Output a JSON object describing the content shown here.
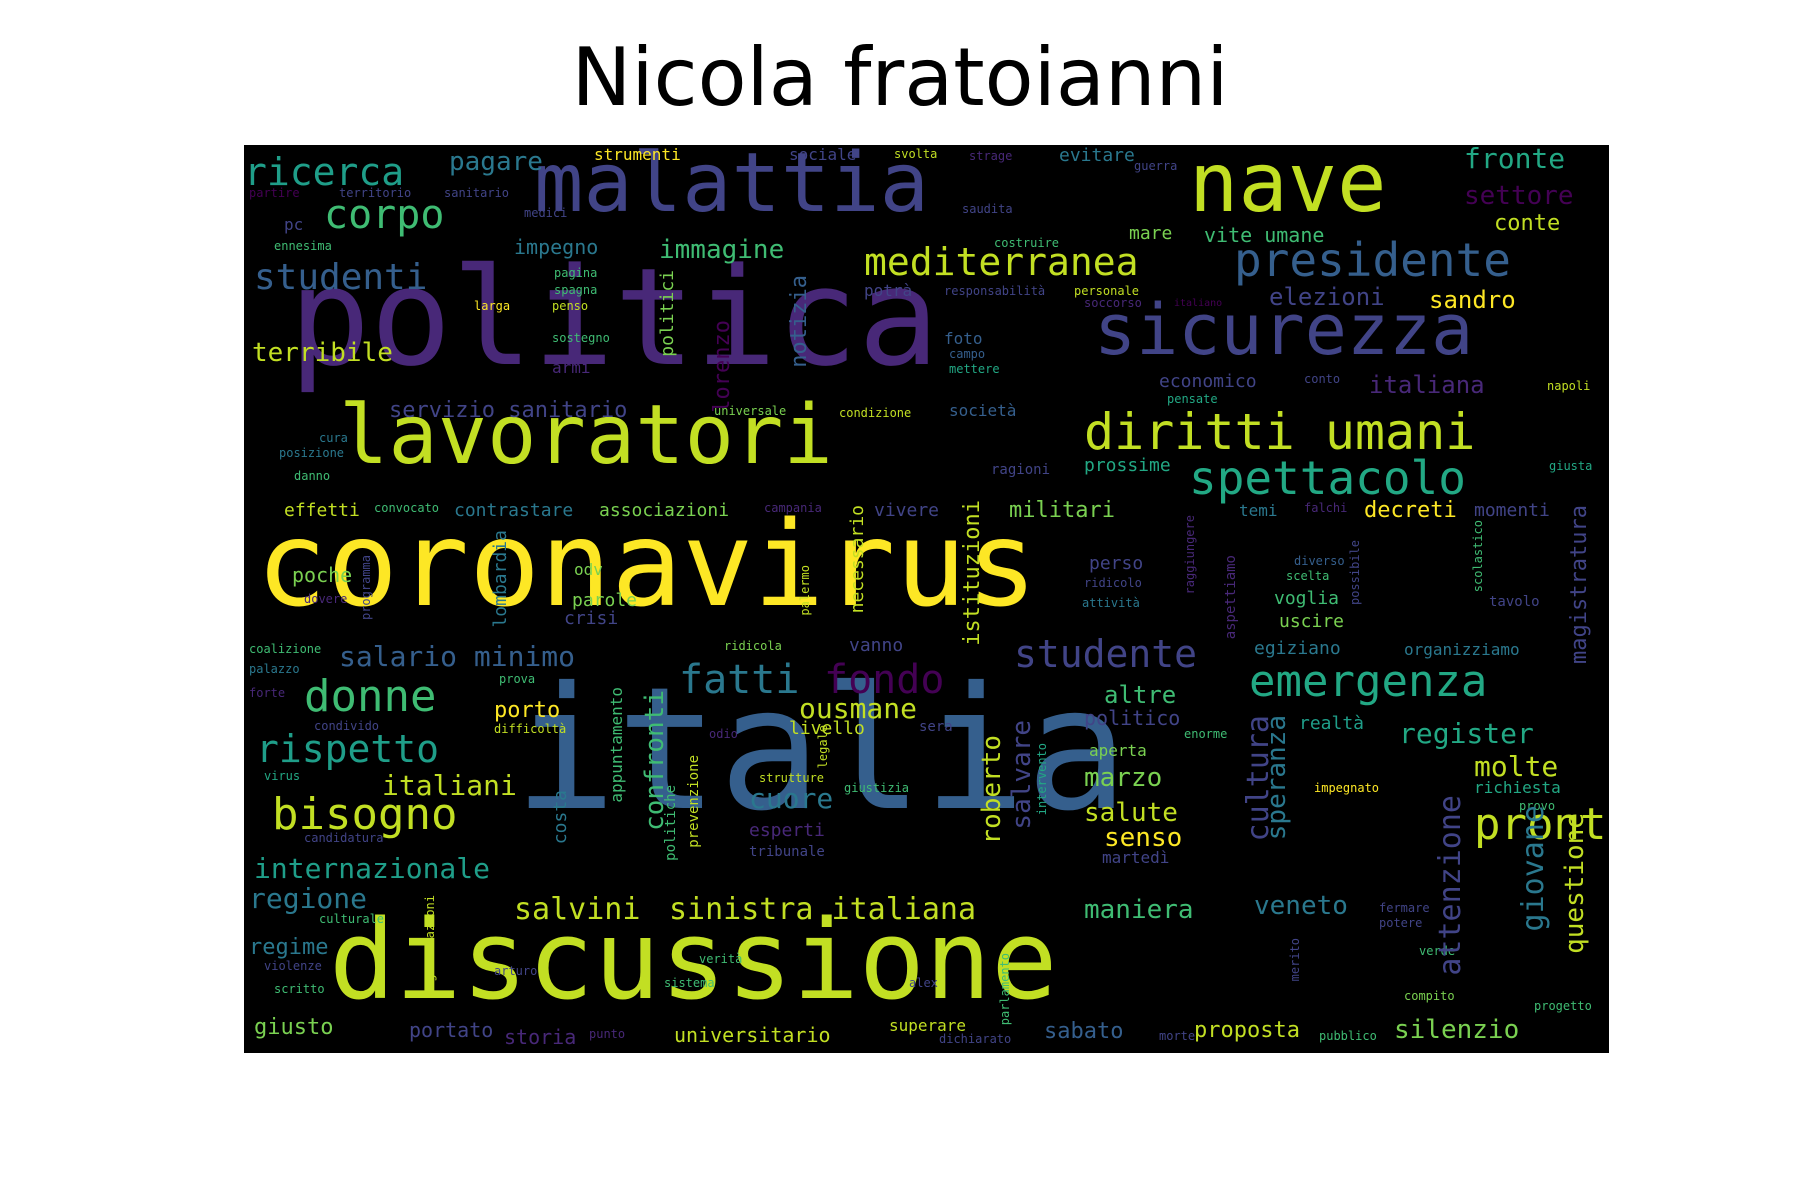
{
  "title": "Nicola fratoianni",
  "palette": {
    "yellow": "#fde725",
    "lime": "#c2df23",
    "green": "#7ad151",
    "teal_green": "#3fbc73",
    "teal": "#22a884",
    "cyan": "#1f9e89",
    "blue_teal": "#26828e",
    "steel": "#2a788e",
    "slate": "#355f8d",
    "indigo": "#414487",
    "purple": "#482878",
    "dark_purple": "#440154"
  },
  "words": [
    {
      "text": "coronavirus",
      "size": 118,
      "color": "yellow"
    },
    {
      "text": "italia",
      "size": 170,
      "color": "slate"
    },
    {
      "text": "politica",
      "size": 135,
      "color": "purple"
    },
    {
      "text": "discussione",
      "size": 110,
      "color": "lime"
    },
    {
      "text": "lavoratori",
      "size": 82,
      "color": "lime"
    },
    {
      "text": "malattia",
      "size": 82,
      "color": "indigo"
    },
    {
      "text": "nave",
      "size": 82,
      "color": "lime"
    },
    {
      "text": "sicurezza",
      "size": 70,
      "color": "indigo"
    },
    {
      "text": "diritti umani",
      "size": 50,
      "color": "lime"
    },
    {
      "text": "spettacolo",
      "size": 46,
      "color": "teal"
    },
    {
      "text": "presidente",
      "size": 46,
      "color": "slate"
    },
    {
      "text": "emergenza",
      "size": 44,
      "color": "teal"
    },
    {
      "text": "mediterranea",
      "size": 38,
      "color": "lime"
    },
    {
      "text": "corpo",
      "size": 40,
      "color": "teal_green"
    },
    {
      "text": "ricerca",
      "size": 38,
      "color": "cyan"
    },
    {
      "text": "studenti",
      "size": 36,
      "color": "slate"
    },
    {
      "text": "donne",
      "size": 44,
      "color": "teal_green"
    },
    {
      "text": "bisogno",
      "size": 44,
      "color": "lime"
    },
    {
      "text": "rispetto",
      "size": 38,
      "color": "cyan"
    },
    {
      "text": "studente",
      "size": 38,
      "color": "indigo"
    },
    {
      "text": "fatti",
      "size": 40,
      "color": "steel"
    },
    {
      "text": "fondo",
      "size": 40,
      "color": "dark_purple"
    },
    {
      "text": "salario minimo",
      "size": 28,
      "color": "slate"
    },
    {
      "text": "internazionale",
      "size": 28,
      "color": "cyan"
    },
    {
      "text": "regione",
      "size": 28,
      "color": "steel"
    },
    {
      "text": "italiani",
      "size": 28,
      "color": "lime"
    },
    {
      "text": "salvini",
      "size": 30,
      "color": "lime"
    },
    {
      "text": "sinistra italiana",
      "size": 30,
      "color": "lime"
    },
    {
      "text": "ousmane",
      "size": 28,
      "color": "lime"
    },
    {
      "text": "cuore",
      "size": 28,
      "color": "steel"
    },
    {
      "text": "pronto",
      "size": 44,
      "color": "lime",
      "vertical": true
    },
    {
      "text": "register",
      "size": 28,
      "color": "teal"
    },
    {
      "text": "molte",
      "size": 28,
      "color": "lime"
    },
    {
      "text": "settore",
      "size": 26,
      "color": "dark_purple"
    },
    {
      "text": "fronte",
      "size": 28,
      "color": "teal"
    },
    {
      "text": "conte",
      "size": 22,
      "color": "lime"
    },
    {
      "text": "pagare",
      "size": 26,
      "color": "steel"
    },
    {
      "text": "immagine",
      "size": 26,
      "color": "teal_green"
    },
    {
      "text": "impegno",
      "size": 20,
      "color": "steel"
    },
    {
      "text": "vite umane",
      "size": 20,
      "color": "teal_green"
    },
    {
      "text": "mare",
      "size": 18,
      "color": "green"
    },
    {
      "text": "elezioni",
      "size": 24,
      "color": "indigo"
    },
    {
      "text": "sandro",
      "size": 24,
      "color": "yellow"
    },
    {
      "text": "italiana",
      "size": 24,
      "color": "purple"
    },
    {
      "text": "servizio sanitario",
      "size": 22,
      "color": "indigo"
    },
    {
      "text": "terribile",
      "size": 26,
      "color": "lime",
      "vertical": true
    },
    {
      "text": "militari",
      "size": 22,
      "color": "green"
    },
    {
      "text": "decreti",
      "size": 22,
      "color": "yellow"
    },
    {
      "text": "momenti",
      "size": 18,
      "color": "indigo"
    },
    {
      "text": "prossime",
      "size": 18,
      "color": "teal"
    },
    {
      "text": "contrastare",
      "size": 18,
      "color": "steel"
    },
    {
      "text": "associazioni",
      "size": 18,
      "color": "green"
    },
    {
      "text": "vivere",
      "size": 18,
      "color": "indigo"
    },
    {
      "text": "effetti",
      "size": 18,
      "color": "lime"
    },
    {
      "text": "poche",
      "size": 20,
      "color": "green"
    },
    {
      "text": "altre",
      "size": 24,
      "color": "teal_green"
    },
    {
      "text": "politico",
      "size": 20,
      "color": "indigo"
    },
    {
      "text": "realtà",
      "size": 18,
      "color": "cyan"
    },
    {
      "text": "marzo",
      "size": 26,
      "color": "green"
    },
    {
      "text": "salute",
      "size": 26,
      "color": "lime"
    },
    {
      "text": "senso",
      "size": 26,
      "color": "yellow"
    },
    {
      "text": "maniera",
      "size": 26,
      "color": "teal_green"
    },
    {
      "text": "veneto",
      "size": 26,
      "color": "steel"
    },
    {
      "text": "porto",
      "size": 22,
      "color": "yellow"
    },
    {
      "text": "livello",
      "size": 18,
      "color": "lime"
    },
    {
      "text": "aperta",
      "size": 16,
      "color": "green"
    },
    {
      "text": "regime",
      "size": 22,
      "color": "steel"
    },
    {
      "text": "giusto",
      "size": 22,
      "color": "green"
    },
    {
      "text": "universitario",
      "size": 20,
      "color": "lime"
    },
    {
      "text": "proposta",
      "size": 22,
      "color": "lime"
    },
    {
      "text": "silenzio",
      "size": 26,
      "color": "green"
    },
    {
      "text": "sabato",
      "size": 22,
      "color": "slate"
    },
    {
      "text": "storia",
      "size": 20,
      "color": "purple"
    },
    {
      "text": "portato",
      "size": 20,
      "color": "indigo"
    },
    {
      "text": "superare",
      "size": 16,
      "color": "lime"
    },
    {
      "text": "esperti",
      "size": 18,
      "color": "purple"
    },
    {
      "text": "tribunale",
      "size": 14,
      "color": "indigo"
    },
    {
      "text": "martedì",
      "size": 16,
      "color": "indigo"
    },
    {
      "text": "richiesta",
      "size": 16,
      "color": "teal"
    },
    {
      "text": "egiziano",
      "size": 18,
      "color": "steel"
    },
    {
      "text": "organizziamo",
      "size": 16,
      "color": "steel"
    },
    {
      "text": "uscire",
      "size": 18,
      "color": "green"
    },
    {
      "text": "voglia",
      "size": 18,
      "color": "teal_green"
    },
    {
      "text": "tavolo",
      "size": 14,
      "color": "indigo"
    },
    {
      "text": "temi",
      "size": 16,
      "color": "steel"
    },
    {
      "text": "perso",
      "size": 18,
      "color": "indigo"
    },
    {
      "text": "odv",
      "size": 16,
      "color": "green"
    },
    {
      "text": "parole",
      "size": 18,
      "color": "green"
    },
    {
      "text": "crisi",
      "size": 18,
      "color": "indigo"
    },
    {
      "text": "vanno",
      "size": 18,
      "color": "indigo"
    },
    {
      "text": "economico",
      "size": 18,
      "color": "indigo"
    },
    {
      "text": "società",
      "size": 16,
      "color": "slate"
    },
    {
      "text": "ragioni",
      "size": 14,
      "color": "indigo"
    },
    {
      "text": "condizione",
      "size": 12,
      "color": "lime"
    },
    {
      "text": "universale",
      "size": 12,
      "color": "green"
    },
    {
      "text": "pensate",
      "size": 12,
      "color": "teal"
    },
    {
      "text": "napoli",
      "size": 12,
      "color": "lime"
    },
    {
      "text": "conto",
      "size": 12,
      "color": "indigo"
    },
    {
      "text": "giusta",
      "size": 12,
      "color": "teal"
    },
    {
      "text": "foto",
      "size": 16,
      "color": "slate"
    },
    {
      "text": "campo",
      "size": 12,
      "color": "slate"
    },
    {
      "text": "mettere",
      "size": 12,
      "color": "teal"
    },
    {
      "text": "potrà",
      "size": 16,
      "color": "indigo"
    },
    {
      "text": "responsabilità",
      "size": 12,
      "color": "indigo"
    },
    {
      "text": "personale",
      "size": 12,
      "color": "lime"
    },
    {
      "text": "soccorso",
      "size": 12,
      "color": "purple"
    },
    {
      "text": "italiano",
      "size": 10,
      "color": "dark_purple"
    },
    {
      "text": "costruire",
      "size": 12,
      "color": "teal_green"
    },
    {
      "text": "saudita",
      "size": 12,
      "color": "indigo"
    },
    {
      "text": "guerra",
      "size": 12,
      "color": "indigo"
    },
    {
      "text": "evitare",
      "size": 18,
      "color": "steel"
    },
    {
      "text": "strage",
      "size": 12,
      "color": "purple"
    },
    {
      "text": "svolta",
      "size": 12,
      "color": "lime"
    },
    {
      "text": "sociale",
      "size": 16,
      "color": "indigo"
    },
    {
      "text": "strumenti",
      "size": 16,
      "color": "yellow"
    },
    {
      "text": "sanitario",
      "size": 12,
      "color": "indigo"
    },
    {
      "text": "territorio",
      "size": 12,
      "color": "indigo"
    },
    {
      "text": "partire",
      "size": 12,
      "color": "dark_purple"
    },
    {
      "text": "medici",
      "size": 12,
      "color": "indigo"
    },
    {
      "text": "pc",
      "size": 16,
      "color": "indigo"
    },
    {
      "text": "ennesima",
      "size": 12,
      "color": "teal_green"
    },
    {
      "text": "pagina",
      "size": 12,
      "color": "teal_green"
    },
    {
      "text": "spagna",
      "size": 12,
      "color": "teal_green"
    },
    {
      "text": "larga",
      "size": 12,
      "color": "yellow"
    },
    {
      "text": "penso",
      "size": 12,
      "color": "lime"
    },
    {
      "text": "sostegno",
      "size": 12,
      "color": "teal_green"
    },
    {
      "text": "armi",
      "size": 16,
      "color": "purple"
    },
    {
      "text": "cura",
      "size": 12,
      "color": "steel"
    },
    {
      "text": "posizione",
      "size": 12,
      "color": "steel"
    },
    {
      "text": "danno",
      "size": 12,
      "color": "teal_green"
    },
    {
      "text": "convocato",
      "size": 12,
      "color": "teal_green"
    },
    {
      "text": "campania",
      "size": 12,
      "color": "purple"
    },
    {
      "text": "falchi",
      "size": 12,
      "color": "purple"
    },
    {
      "text": "diverso",
      "size": 12,
      "color": "slate"
    },
    {
      "text": "scelta",
      "size": 12,
      "color": "teal_green"
    },
    {
      "text": "ridicolo",
      "size": 12,
      "color": "indigo"
    },
    {
      "text": "attività",
      "size": 12,
      "color": "steel"
    },
    {
      "text": "dovere",
      "size": 12,
      "color": "purple"
    },
    {
      "text": "coalizione",
      "size": 12,
      "color": "teal_green"
    },
    {
      "text": "palazzo",
      "size": 12,
      "color": "steel"
    },
    {
      "text": "prova",
      "size": 12,
      "color": "teal_green"
    },
    {
      "text": "ridicola",
      "size": 12,
      "color": "green"
    },
    {
      "text": "forte",
      "size": 12,
      "color": "purple"
    },
    {
      "text": "condivido",
      "size": 12,
      "color": "indigo"
    },
    {
      "text": "difficoltà",
      "size": 12,
      "color": "lime"
    },
    {
      "text": "odio",
      "size": 12,
      "color": "purple"
    },
    {
      "text": "sera",
      "size": 14,
      "color": "indigo"
    },
    {
      "text": "enorme",
      "size": 12,
      "color": "teal_green"
    },
    {
      "text": "virus",
      "size": 12,
      "color": "teal"
    },
    {
      "text": "strutture",
      "size": 12,
      "color": "lime"
    },
    {
      "text": "giustizia",
      "size": 12,
      "color": "teal_green"
    },
    {
      "text": "impegnato",
      "size": 12,
      "color": "yellow"
    },
    {
      "text": "provo",
      "size": 12,
      "color": "teal_green"
    },
    {
      "text": "candidatura",
      "size": 12,
      "color": "indigo"
    },
    {
      "text": "culturale",
      "size": 12,
      "color": "teal_green"
    },
    {
      "text": "fermare",
      "size": 12,
      "color": "indigo"
    },
    {
      "text": "potere",
      "size": 12,
      "color": "indigo"
    },
    {
      "text": "verde",
      "size": 12,
      "color": "teal_green"
    },
    {
      "text": "violenze",
      "size": 12,
      "color": "indigo"
    },
    {
      "text": "arturo",
      "size": 12,
      "color": "indigo"
    },
    {
      "text": "verità",
      "size": 12,
      "color": "teal_green"
    },
    {
      "text": "sistema",
      "size": 12,
      "color": "teal_green"
    },
    {
      "text": "alex",
      "size": 12,
      "color": "indigo"
    },
    {
      "text": "scritto",
      "size": 12,
      "color": "teal_green"
    },
    {
      "text": "compito",
      "size": 12,
      "color": "green"
    },
    {
      "text": "progetto",
      "size": 12,
      "color": "teal_green"
    },
    {
      "text": "punto",
      "size": 12,
      "color": "purple"
    },
    {
      "text": "dichiarato",
      "size": 12,
      "color": "indigo"
    },
    {
      "text": "morte",
      "size": 12,
      "color": "indigo"
    },
    {
      "text": "pubblico",
      "size": 12,
      "color": "teal_green"
    },
    {
      "text": "cultura",
      "size": 30,
      "color": "indigo",
      "vertical": true
    },
    {
      "text": "speranza",
      "size": 26,
      "color": "steel",
      "vertical": true
    },
    {
      "text": "attenzione",
      "size": 30,
      "color": "indigo",
      "vertical": true
    },
    {
      "text": "giovane",
      "size": 30,
      "color": "steel",
      "vertical": true
    },
    {
      "text": "questione",
      "size": 26,
      "color": "lime",
      "vertical": true
    },
    {
      "text": "magistratura",
      "size": 22,
      "color": "indigo",
      "vertical": true
    },
    {
      "text": "salvare",
      "size": 26,
      "color": "indigo",
      "vertical": true
    },
    {
      "text": "roberto",
      "size": 26,
      "color": "lime",
      "vertical": true
    },
    {
      "text": "confronti",
      "size": 26,
      "color": "teal_green",
      "vertical": true
    },
    {
      "text": "appuntamento",
      "size": 16,
      "color": "teal_green",
      "vertical": true
    },
    {
      "text": "politiche",
      "size": 14,
      "color": "teal_green",
      "vertical": true
    },
    {
      "text": "prevenzione",
      "size": 14,
      "color": "lime",
      "vertical": true
    },
    {
      "text": "costa",
      "size": 18,
      "color": "steel",
      "vertical": true
    },
    {
      "text": "istituzioni",
      "size": 22,
      "color": "lime",
      "vertical": true
    },
    {
      "text": "necessario",
      "size": 18,
      "color": "lime",
      "vertical": true
    },
    {
      "text": "lombardia",
      "size": 18,
      "color": "steel",
      "vertical": true
    },
    {
      "text": "programma",
      "size": 12,
      "color": "indigo",
      "vertical": true
    },
    {
      "text": "notizia",
      "size": 22,
      "color": "slate",
      "vertical": true
    },
    {
      "text": "lorenzo",
      "size": 22,
      "color": "dark_purple",
      "vertical": true
    },
    {
      "text": "politici",
      "size": 18,
      "color": "green",
      "vertical": true
    },
    {
      "text": "palermo",
      "size": 12,
      "color": "lime",
      "vertical": true
    },
    {
      "text": "aspettiamo",
      "size": 14,
      "color": "purple",
      "vertical": true
    },
    {
      "text": "raggiungere",
      "size": 12,
      "color": "purple",
      "vertical": true
    },
    {
      "text": "possibile",
      "size": 12,
      "color": "indigo",
      "vertical": true
    },
    {
      "text": "scolastico",
      "size": 12,
      "color": "teal_green",
      "vertical": true
    },
    {
      "text": "organizzazioni",
      "size": 12,
      "color": "lime",
      "vertical": true
    },
    {
      "text": "merito",
      "size": 12,
      "color": "indigo",
      "vertical": true
    },
    {
      "text": "parlamento",
      "size": 12,
      "color": "teal_green",
      "vertical": true
    },
    {
      "text": "intervento",
      "size": 12,
      "color": "teal",
      "vertical": true
    },
    {
      "text": "legale",
      "size": 12,
      "color": "lime",
      "vertical": true
    }
  ]
}
